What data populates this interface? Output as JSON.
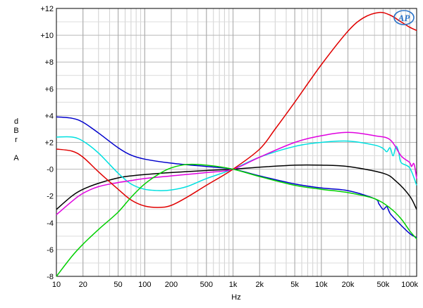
{
  "chart_data": {
    "type": "line",
    "xlabel": "Hz",
    "ylabel": [
      "d",
      "B",
      "r",
      "",
      "A"
    ],
    "x_scale": "log",
    "xlim": [
      10,
      120000
    ],
    "ylim": [
      -8,
      12
    ],
    "grid": true,
    "x_ticks": [
      {
        "value": 10,
        "label": "10"
      },
      {
        "value": 20,
        "label": "20"
      },
      {
        "value": 50,
        "label": "50"
      },
      {
        "value": 100,
        "label": "100"
      },
      {
        "value": 200,
        "label": "200"
      },
      {
        "value": 500,
        "label": "500"
      },
      {
        "value": 1000,
        "label": "1k"
      },
      {
        "value": 2000,
        "label": "2k"
      },
      {
        "value": 5000,
        "label": "5k"
      },
      {
        "value": 10000,
        "label": "10k"
      },
      {
        "value": 20000,
        "label": "20k"
      },
      {
        "value": 50000,
        "label": "50k"
      },
      {
        "value": 100000,
        "label": "100k"
      }
    ],
    "y_ticks": [
      {
        "value": 12,
        "label": "+12"
      },
      {
        "value": 10,
        "label": "+10"
      },
      {
        "value": 8,
        "label": "+8"
      },
      {
        "value": 6,
        "label": "+6"
      },
      {
        "value": 4,
        "label": "+4"
      },
      {
        "value": 2,
        "label": "+2"
      },
      {
        "value": 0,
        "label": "-0"
      },
      {
        "value": -2,
        "label": "-2"
      },
      {
        "value": -4,
        "label": "-4"
      },
      {
        "value": -6,
        "label": "-6"
      },
      {
        "value": -8,
        "label": "-8"
      }
    ],
    "logo_text": "AP",
    "series": [
      {
        "color": "#000000",
        "points": [
          [
            10,
            -3.0
          ],
          [
            15,
            -2.0
          ],
          [
            20,
            -1.5
          ],
          [
            30,
            -1.05
          ],
          [
            50,
            -0.65
          ],
          [
            70,
            -0.5
          ],
          [
            100,
            -0.4
          ],
          [
            200,
            -0.25
          ],
          [
            500,
            -0.1
          ],
          [
            1000,
            0
          ],
          [
            2000,
            0.15
          ],
          [
            5000,
            0.3
          ],
          [
            10000,
            0.3
          ],
          [
            20000,
            0.2
          ],
          [
            50000,
            -0.3
          ],
          [
            70000,
            -0.9
          ],
          [
            100000,
            -2.0
          ],
          [
            120000,
            -3.0
          ]
        ]
      },
      {
        "color": "#0000cc",
        "points": [
          [
            10,
            3.9
          ],
          [
            15,
            3.8
          ],
          [
            20,
            3.5
          ],
          [
            30,
            2.7
          ],
          [
            50,
            1.6
          ],
          [
            70,
            1.05
          ],
          [
            100,
            0.75
          ],
          [
            200,
            0.45
          ],
          [
            500,
            0.2
          ],
          [
            1000,
            0
          ],
          [
            2000,
            -0.5
          ],
          [
            5000,
            -1.1
          ],
          [
            10000,
            -1.4
          ],
          [
            20000,
            -1.6
          ],
          [
            40000,
            -2.2
          ],
          [
            45000,
            -2.6
          ],
          [
            50000,
            -3.0
          ],
          [
            55000,
            -2.8
          ],
          [
            60000,
            -3.3
          ],
          [
            70000,
            -3.8
          ],
          [
            100000,
            -4.8
          ],
          [
            120000,
            -5.1
          ]
        ]
      },
      {
        "color": "#00e0e0",
        "points": [
          [
            10,
            2.4
          ],
          [
            15,
            2.4
          ],
          [
            20,
            2.1
          ],
          [
            30,
            1.2
          ],
          [
            50,
            -0.3
          ],
          [
            70,
            -1.1
          ],
          [
            100,
            -1.5
          ],
          [
            150,
            -1.6
          ],
          [
            200,
            -1.55
          ],
          [
            300,
            -1.3
          ],
          [
            500,
            -0.7
          ],
          [
            1000,
            0
          ],
          [
            2000,
            0.9
          ],
          [
            5000,
            1.7
          ],
          [
            10000,
            2.0
          ],
          [
            20000,
            2.1
          ],
          [
            40000,
            1.8
          ],
          [
            50000,
            1.55
          ],
          [
            55000,
            1.3
          ],
          [
            60000,
            1.6
          ],
          [
            65000,
            1.0
          ],
          [
            70000,
            1.7
          ],
          [
            75000,
            1.3
          ],
          [
            80000,
            0.5
          ],
          [
            100000,
            0.1
          ],
          [
            120000,
            -1.2
          ]
        ]
      },
      {
        "color": "#e000e0",
        "points": [
          [
            10,
            -3.4
          ],
          [
            15,
            -2.4
          ],
          [
            20,
            -1.8
          ],
          [
            30,
            -1.3
          ],
          [
            50,
            -1.0
          ],
          [
            70,
            -0.85
          ],
          [
            100,
            -0.7
          ],
          [
            200,
            -0.5
          ],
          [
            500,
            -0.25
          ],
          [
            1000,
            0
          ],
          [
            2000,
            0.9
          ],
          [
            5000,
            2.0
          ],
          [
            10000,
            2.5
          ],
          [
            20000,
            2.75
          ],
          [
            40000,
            2.5
          ],
          [
            60000,
            2.2
          ],
          [
            80000,
            1.0
          ],
          [
            100000,
            0.5
          ],
          [
            105000,
            0.2
          ],
          [
            112000,
            0.4
          ],
          [
            120000,
            -0.7
          ]
        ]
      },
      {
        "color": "#e00000",
        "points": [
          [
            10,
            1.5
          ],
          [
            15,
            1.35
          ],
          [
            20,
            0.9
          ],
          [
            30,
            -0.2
          ],
          [
            50,
            -1.5
          ],
          [
            70,
            -2.3
          ],
          [
            100,
            -2.75
          ],
          [
            150,
            -2.85
          ],
          [
            200,
            -2.7
          ],
          [
            300,
            -2.1
          ],
          [
            500,
            -1.2
          ],
          [
            1000,
            0
          ],
          [
            2000,
            1.5
          ],
          [
            3000,
            3.0
          ],
          [
            5000,
            5.0
          ],
          [
            10000,
            7.8
          ],
          [
            20000,
            10.3
          ],
          [
            30000,
            11.3
          ],
          [
            45000,
            11.7
          ],
          [
            60000,
            11.5
          ],
          [
            80000,
            11.0
          ],
          [
            100000,
            10.6
          ],
          [
            120000,
            10.35
          ]
        ]
      },
      {
        "color": "#00d000",
        "points": [
          [
            10,
            -8.0
          ],
          [
            15,
            -6.5
          ],
          [
            20,
            -5.6
          ],
          [
            30,
            -4.5
          ],
          [
            50,
            -3.2
          ],
          [
            70,
            -2.1
          ],
          [
            100,
            -1.1
          ],
          [
            150,
            -0.3
          ],
          [
            200,
            0.1
          ],
          [
            300,
            0.35
          ],
          [
            500,
            0.3
          ],
          [
            1000,
            0
          ],
          [
            2000,
            -0.55
          ],
          [
            5000,
            -1.2
          ],
          [
            10000,
            -1.5
          ],
          [
            20000,
            -1.75
          ],
          [
            40000,
            -2.2
          ],
          [
            60000,
            -2.9
          ],
          [
            80000,
            -3.7
          ],
          [
            100000,
            -4.6
          ],
          [
            120000,
            -5.2
          ]
        ]
      }
    ]
  }
}
